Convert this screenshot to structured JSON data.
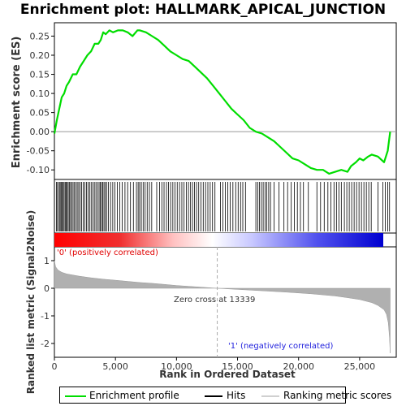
{
  "chart_data": {
    "type": "line",
    "title": "Enrichment plot: HALLMARK_APICAL_JUNCTION",
    "xlabel": "Rank in Ordered Dataset",
    "ylabel_top": "Enrichment score (ES)",
    "ylabel_bottom": "Ranked list metric (Signal2Noise)",
    "x_ticks": [
      "0",
      "5,000",
      "10,000",
      "15,000",
      "20,000",
      "25,000"
    ],
    "x_tick_values": [
      0,
      5000,
      10000,
      15000,
      20000,
      25000
    ],
    "x_range": [
      0,
      28000
    ],
    "es_ylim": [
      -0.125,
      0.285
    ],
    "es_y_ticks": [
      "0.25",
      "0.20",
      "0.15",
      "0.10",
      "0.05",
      "0.00",
      "-0.05",
      "-0.10"
    ],
    "es_y_tick_values": [
      0.25,
      0.2,
      0.15,
      0.1,
      0.05,
      0.0,
      -0.05,
      -0.1
    ],
    "metric_ylim": [
      -2.5,
      1.5
    ],
    "metric_y_ticks": [
      "1",
      "0",
      "-1",
      "-2"
    ],
    "metric_y_tick_values": [
      1,
      0,
      -1,
      -2
    ],
    "es_series": {
      "name": "Enrichment profile",
      "color": "#00dd00",
      "x": [
        0,
        200,
        400,
        600,
        800,
        1000,
        1200,
        1500,
        1800,
        2100,
        2400,
        2700,
        3000,
        3300,
        3600,
        3800,
        4000,
        4200,
        4500,
        4800,
        5200,
        5600,
        6000,
        6400,
        6800,
        7000,
        7500,
        8000,
        8500,
        9000,
        9500,
        10000,
        10500,
        11000,
        11500,
        12000,
        12500,
        13000,
        13500,
        14000,
        14500,
        15000,
        15500,
        16000,
        16500,
        17000,
        17500,
        18000,
        18500,
        19000,
        19500,
        20000,
        20500,
        21000,
        21500,
        22000,
        22500,
        23000,
        23500,
        24000,
        24300,
        24700,
        25000,
        25300,
        25700,
        26000,
        26500,
        27000,
        27300,
        27500
      ],
      "y": [
        -0.005,
        0.03,
        0.06,
        0.09,
        0.1,
        0.12,
        0.13,
        0.15,
        0.15,
        0.17,
        0.185,
        0.2,
        0.21,
        0.23,
        0.23,
        0.24,
        0.26,
        0.255,
        0.265,
        0.26,
        0.265,
        0.265,
        0.26,
        0.25,
        0.265,
        0.265,
        0.26,
        0.25,
        0.24,
        0.225,
        0.21,
        0.2,
        0.19,
        0.185,
        0.17,
        0.155,
        0.14,
        0.12,
        0.1,
        0.08,
        0.06,
        0.045,
        0.03,
        0.01,
        0.0,
        -0.005,
        -0.015,
        -0.025,
        -0.04,
        -0.055,
        -0.07,
        -0.075,
        -0.085,
        -0.095,
        -0.1,
        -0.1,
        -0.11,
        -0.105,
        -0.1,
        -0.105,
        -0.09,
        -0.08,
        -0.07,
        -0.075,
        -0.065,
        -0.06,
        -0.065,
        -0.08,
        -0.05,
        0.0
      ]
    },
    "hits": {
      "name": "Hits",
      "color": "#000000",
      "positions": [
        160,
        250,
        380,
        460,
        540,
        610,
        700,
        790,
        880,
        950,
        1040,
        1130,
        1220,
        1320,
        1420,
        1530,
        1640,
        1760,
        1870,
        1990,
        2110,
        2230,
        2360,
        2490,
        2620,
        2750,
        2880,
        3010,
        3140,
        3270,
        3400,
        3530,
        3660,
        3760,
        3860,
        3960,
        4060,
        4160,
        4280,
        4430,
        4600,
        4780,
        4960,
        5150,
        5350,
        5560,
        5780,
        6000,
        6230,
        6470,
        6720,
        6860,
        6980,
        7120,
        7270,
        7430,
        7600,
        7780,
        7970,
        8380,
        8620,
        8800,
        8980,
        9180,
        9350,
        9520,
        9700,
        9880,
        10060,
        10250,
        10440,
        10620,
        10800,
        10980,
        11150,
        11310,
        11470,
        11640,
        11820,
        12000,
        12190,
        12380,
        12570,
        12760,
        12950,
        13150,
        13600,
        13800,
        14000,
        14200,
        14400,
        14620,
        14850,
        15050,
        15250,
        15430,
        15650,
        16500,
        16650,
        16800,
        16950,
        17100,
        17250,
        17400,
        17550,
        17700,
        18000,
        18400,
        18800,
        19100,
        19400,
        19650,
        19900,
        20150,
        20400,
        20800,
        21500,
        21800,
        22100,
        22400,
        22650,
        22900,
        23100,
        23300,
        23500,
        23750,
        23950,
        24150,
        24350,
        24550,
        24750,
        24950,
        25150,
        25350,
        25550,
        25750,
        25950,
        26500,
        26900,
        27100,
        27300,
        27450
      ]
    },
    "metric": {
      "name": "Ranking metric scores",
      "color": "#b0b0b0",
      "x": [
        0,
        100,
        300,
        600,
        1000,
        2000,
        3000,
        4000,
        5000,
        6000,
        7000,
        8000,
        9000,
        10000,
        11000,
        12000,
        13339,
        15000,
        17000,
        19000,
        21000,
        23000,
        24000,
        25000,
        26000,
        26500,
        27000,
        27200,
        27350,
        27450,
        27500
      ],
      "y": [
        1.0,
        0.78,
        0.66,
        0.58,
        0.52,
        0.44,
        0.38,
        0.33,
        0.29,
        0.25,
        0.21,
        0.18,
        0.14,
        0.1,
        0.07,
        0.04,
        0.0,
        -0.04,
        -0.09,
        -0.14,
        -0.2,
        -0.28,
        -0.34,
        -0.41,
        -0.52,
        -0.62,
        -0.78,
        -0.95,
        -1.25,
        -1.8,
        -2.35
      ]
    },
    "zero_cross_label": "Zero cross at 13339",
    "zero_cross": 13339,
    "pos_label": "'0' (positively correlated)",
    "neg_label": "'1' (negatively correlated)",
    "legend": {
      "enrichment": "Enrichment profile",
      "hits": "Hits",
      "ranking": "Ranking metric scores"
    },
    "colors": {
      "es_line": "#00dd00",
      "pos_text": "#e00000",
      "neg_text": "#2222dd",
      "gradient_pos": "#ff0000",
      "gradient_neg": "#0000ff"
    }
  }
}
